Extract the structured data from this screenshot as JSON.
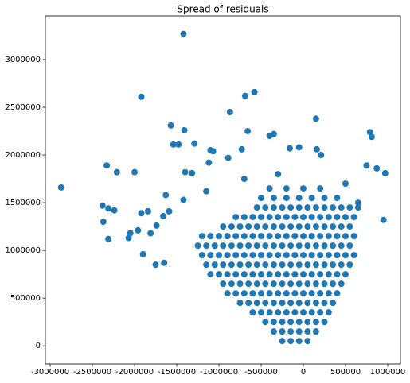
{
  "chart_data": {
    "type": "scatter",
    "title": "Spread of residuals",
    "color": "#1f77b4",
    "xlim": [
      -3057000,
      1151000
    ],
    "ylim": [
      -190000,
      3458000
    ],
    "xticks": [
      -3000000,
      -2500000,
      -2000000,
      -1500000,
      -1000000,
      -500000,
      0,
      500000,
      1000000
    ],
    "yticks": [
      0,
      500000,
      1000000,
      1500000,
      2000000,
      2500000,
      3000000
    ],
    "grid": false,
    "x": [
      -250000,
      -150000,
      -50000,
      50000,
      -350000,
      -250000,
      -150000,
      -50000,
      50000,
      150000,
      -450000,
      -350000,
      -250000,
      -150000,
      -50000,
      50000,
      150000,
      250000,
      -600000,
      -500000,
      -400000,
      -300000,
      -200000,
      -100000,
      0,
      100000,
      200000,
      300000,
      -750000,
      -650000,
      -550000,
      -450000,
      -350000,
      -250000,
      -150000,
      -50000,
      50000,
      150000,
      250000,
      350000,
      -900000,
      -800000,
      -700000,
      -600000,
      -500000,
      -400000,
      -300000,
      -200000,
      -100000,
      0,
      100000,
      200000,
      300000,
      400000,
      -950000,
      -850000,
      -750000,
      -650000,
      -550000,
      -450000,
      -350000,
      -250000,
      -150000,
      -50000,
      50000,
      150000,
      250000,
      350000,
      450000,
      -1100000,
      -1000000,
      -900000,
      -800000,
      -700000,
      -600000,
      -500000,
      -400000,
      -300000,
      -200000,
      -100000,
      0,
      100000,
      200000,
      300000,
      400000,
      500000,
      -1150000,
      -1050000,
      -950000,
      -850000,
      -750000,
      -650000,
      -550000,
      -450000,
      -350000,
      -250000,
      -150000,
      -50000,
      50000,
      150000,
      250000,
      350000,
      450000,
      550000,
      -1200000,
      -1100000,
      -1000000,
      -900000,
      -800000,
      -700000,
      -600000,
      -500000,
      -400000,
      -300000,
      -200000,
      -100000,
      0,
      100000,
      200000,
      300000,
      400000,
      500000,
      600000,
      -1250000,
      -1150000,
      -1050000,
      -950000,
      -850000,
      -750000,
      -650000,
      -550000,
      -450000,
      -350000,
      -250000,
      -150000,
      -50000,
      50000,
      150000,
      250000,
      350000,
      450000,
      550000,
      -1200000,
      -1100000,
      -1000000,
      -900000,
      -800000,
      -700000,
      -600000,
      -500000,
      -400000,
      -300000,
      -200000,
      -100000,
      0,
      100000,
      200000,
      300000,
      400000,
      500000,
      600000,
      -950000,
      -850000,
      -750000,
      -650000,
      -550000,
      -450000,
      -350000,
      -250000,
      -150000,
      -50000,
      50000,
      150000,
      250000,
      350000,
      450000,
      550000,
      -800000,
      -700000,
      -600000,
      -500000,
      -400000,
      -300000,
      -200000,
      -100000,
      0,
      100000,
      200000,
      300000,
      400000,
      500000,
      600000,
      -550000,
      -450000,
      -350000,
      -250000,
      -150000,
      -50000,
      50000,
      150000,
      250000,
      350000,
      450000,
      550000,
      650000,
      -500000,
      -350000,
      -200000,
      -50000,
      100000,
      250000,
      400000,
      -400000,
      -200000,
      0,
      200000,
      -1420000,
      -2870000,
      -1920000,
      -580000,
      -690000,
      -870000,
      150000,
      -1570000,
      -660000,
      -1410000,
      790000,
      810000,
      -400000,
      -350000,
      -1540000,
      -1480000,
      -1290000,
      -1100000,
      -1070000,
      -2330000,
      -2210000,
      -2000000,
      -2380000,
      -2310000,
      -2240000,
      -2370000,
      -2310000,
      -2050000,
      -2070000,
      970000,
      870000,
      750000,
      950000,
      -1400000,
      -1320000,
      -1120000,
      -890000,
      -730000,
      -160000,
      -50000,
      160000,
      210000,
      -1660000,
      -1740000,
      -1810000,
      -1590000,
      -1840000,
      -1920000,
      -1960000,
      -1750000,
      -1650000,
      -1900000,
      -1630000,
      -1420000,
      -1150000,
      -700000,
      500000,
      650000,
      -300000
    ],
    "values": [
      50000,
      50000,
      50000,
      50000,
      150000,
      150000,
      150000,
      150000,
      150000,
      150000,
      250000,
      250000,
      250000,
      250000,
      250000,
      250000,
      250000,
      250000,
      350000,
      350000,
      350000,
      350000,
      350000,
      350000,
      350000,
      350000,
      350000,
      350000,
      450000,
      450000,
      450000,
      450000,
      450000,
      450000,
      450000,
      450000,
      450000,
      450000,
      450000,
      450000,
      550000,
      550000,
      550000,
      550000,
      550000,
      550000,
      550000,
      550000,
      550000,
      550000,
      550000,
      550000,
      550000,
      550000,
      650000,
      650000,
      650000,
      650000,
      650000,
      650000,
      650000,
      650000,
      650000,
      650000,
      650000,
      650000,
      650000,
      650000,
      650000,
      750000,
      750000,
      750000,
      750000,
      750000,
      750000,
      750000,
      750000,
      750000,
      750000,
      750000,
      750000,
      750000,
      750000,
      750000,
      750000,
      750000,
      850000,
      850000,
      850000,
      850000,
      850000,
      850000,
      850000,
      850000,
      850000,
      850000,
      850000,
      850000,
      850000,
      850000,
      850000,
      850000,
      850000,
      850000,
      950000,
      950000,
      950000,
      950000,
      950000,
      950000,
      950000,
      950000,
      950000,
      950000,
      950000,
      950000,
      950000,
      950000,
      950000,
      950000,
      950000,
      950000,
      950000,
      1050000,
      1050000,
      1050000,
      1050000,
      1050000,
      1050000,
      1050000,
      1050000,
      1050000,
      1050000,
      1050000,
      1050000,
      1050000,
      1050000,
      1050000,
      1050000,
      1050000,
      1050000,
      1050000,
      1150000,
      1150000,
      1150000,
      1150000,
      1150000,
      1150000,
      1150000,
      1150000,
      1150000,
      1150000,
      1150000,
      1150000,
      1150000,
      1150000,
      1150000,
      1150000,
      1150000,
      1150000,
      1150000,
      1250000,
      1250000,
      1250000,
      1250000,
      1250000,
      1250000,
      1250000,
      1250000,
      1250000,
      1250000,
      1250000,
      1250000,
      1250000,
      1250000,
      1250000,
      1250000,
      1350000,
      1350000,
      1350000,
      1350000,
      1350000,
      1350000,
      1350000,
      1350000,
      1350000,
      1350000,
      1350000,
      1350000,
      1350000,
      1350000,
      1350000,
      1450000,
      1450000,
      1450000,
      1450000,
      1450000,
      1450000,
      1450000,
      1450000,
      1450000,
      1450000,
      1450000,
      1450000,
      1450000,
      1550000,
      1550000,
      1550000,
      1550000,
      1550000,
      1550000,
      1550000,
      1650000,
      1650000,
      1650000,
      1650000,
      3270000,
      1660000,
      2610000,
      2660000,
      2620000,
      2450000,
      2380000,
      2310000,
      2250000,
      2260000,
      2240000,
      2190000,
      2200000,
      2220000,
      2110000,
      2110000,
      2120000,
      2050000,
      2040000,
      1890000,
      1820000,
      1820000,
      1470000,
      1440000,
      1420000,
      1300000,
      1120000,
      1180000,
      1130000,
      1810000,
      1860000,
      1890000,
      1320000,
      1820000,
      1810000,
      1920000,
      1970000,
      2060000,
      2070000,
      2080000,
      2060000,
      2000000,
      1360000,
      1260000,
      1180000,
      1410000,
      1410000,
      1390000,
      1210000,
      850000,
      870000,
      960000,
      1580000,
      1530000,
      1620000,
      1750000,
      1700000,
      1500000,
      1800000
    ]
  }
}
